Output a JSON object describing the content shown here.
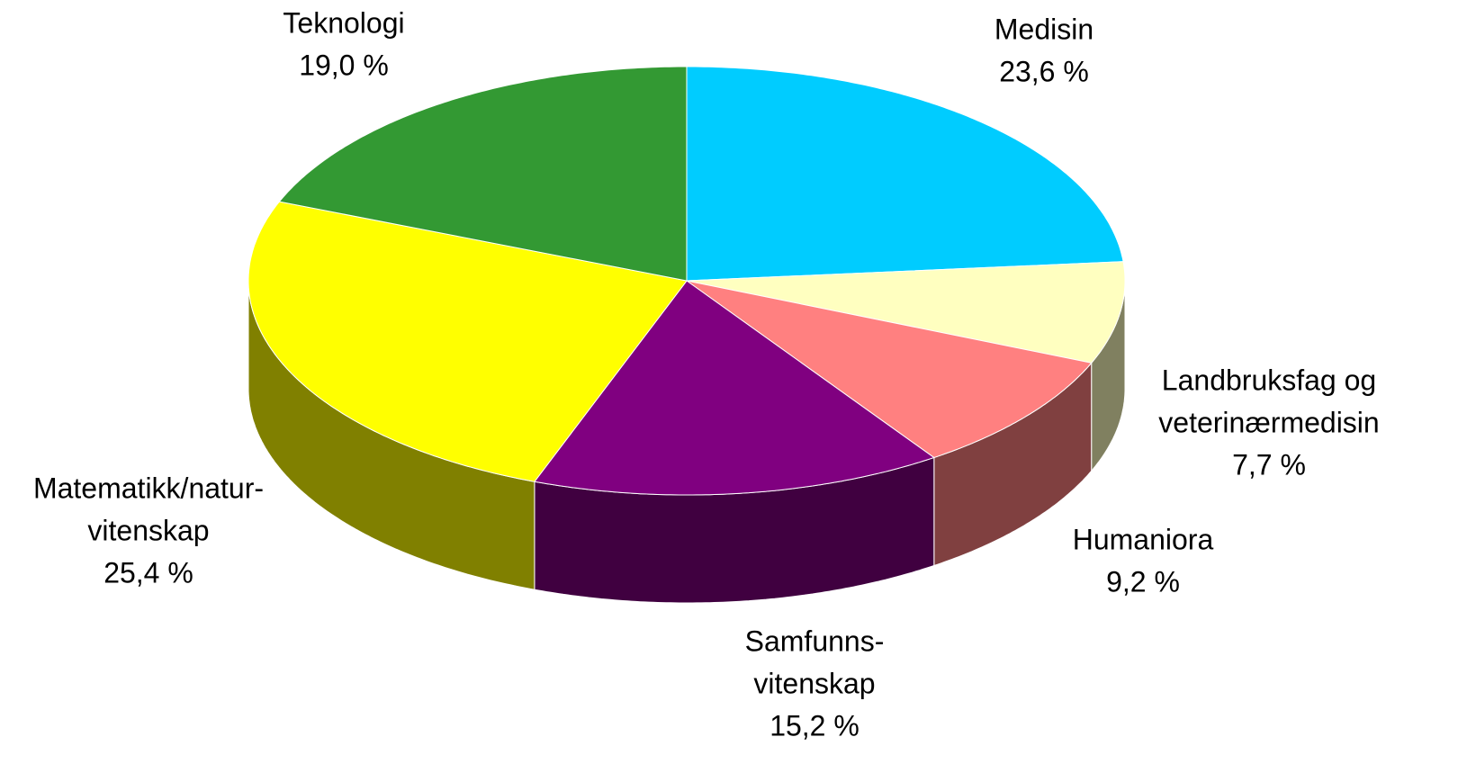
{
  "chart_data": {
    "type": "pie",
    "categories": [
      [
        "Medisin"
      ],
      [
        "Landbruksfag og",
        "veterinærmedisin"
      ],
      [
        "Humaniora"
      ],
      [
        "Samfunns-",
        "vitenskap"
      ],
      [
        "Matematikk/natur-",
        "vitenskap"
      ],
      [
        "Teknologi"
      ]
    ],
    "values": [
      23.6,
      7.7,
      9.2,
      15.2,
      25.4,
      19.0
    ],
    "value_labels": [
      "23,6 %",
      "7,7 %",
      "9,2 %",
      "15,2 %",
      "25,4 %",
      "19,0 %"
    ],
    "colors": [
      "#00ccff",
      "#ffffc0",
      "#ff8080",
      "#800080",
      "#ffff00",
      "#339933"
    ]
  }
}
